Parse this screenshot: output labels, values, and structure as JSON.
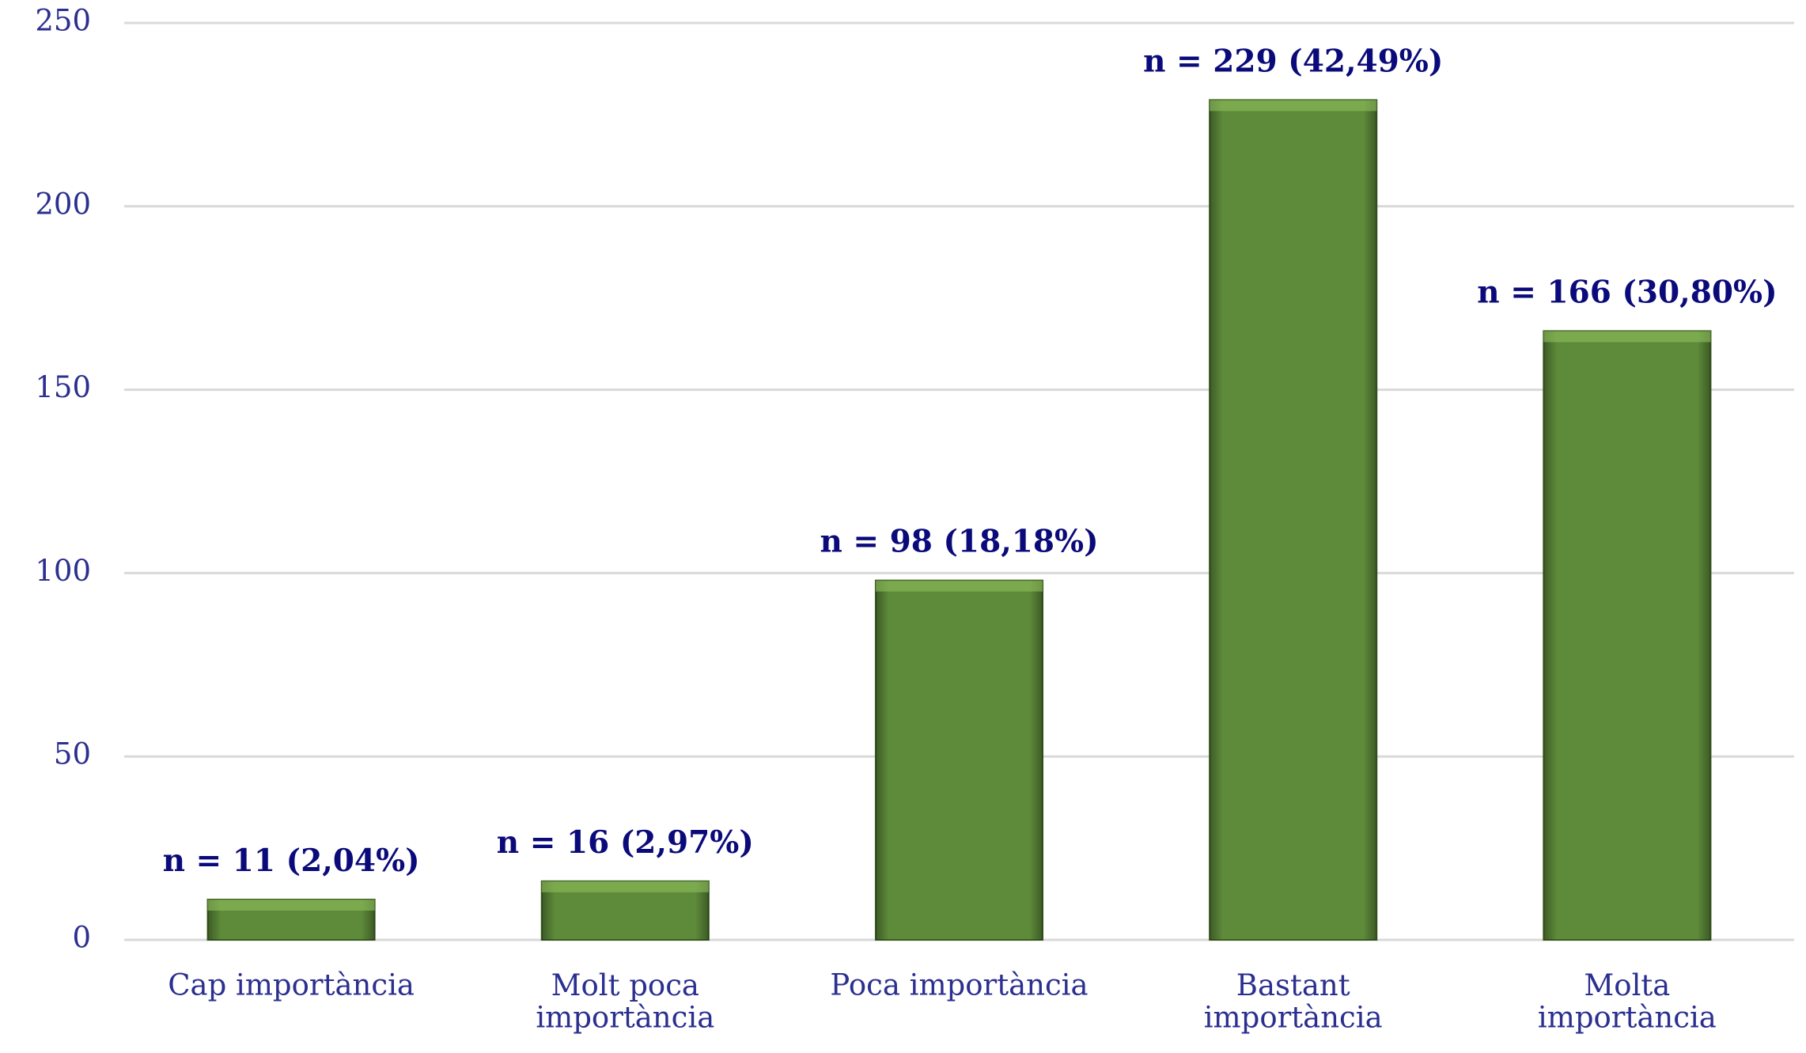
{
  "chart_data": {
    "type": "bar",
    "categories": [
      "Cap importància",
      "Molt poca\nimportància",
      "Poca importància",
      "Bastant\nimportància",
      "Molta\nimportància"
    ],
    "values": [
      11,
      16,
      98,
      229,
      166
    ],
    "value_labels": [
      "n = 11 (2,04%)",
      "n = 16 (2,97%)",
      "n = 98 (18,18%)",
      "n = 229 (42,49%)",
      "n = 166 (30,80%)"
    ],
    "color": "#5e8b3a",
    "ylim": [
      0,
      250
    ],
    "yticks": [
      0,
      50,
      100,
      150,
      200,
      250
    ],
    "grid": true
  }
}
